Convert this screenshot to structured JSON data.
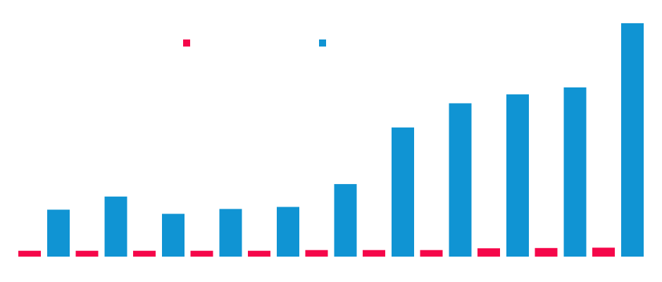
{
  "chart_data": {
    "type": "bar",
    "categories": [
      "",
      "",
      "",
      "",
      "",
      "",
      "",
      "",
      "",
      "",
      ""
    ],
    "series": [
      {
        "color": "#f5074a",
        "values": [
          0.85,
          0.85,
          0.85,
          0.85,
          0.85,
          0.95,
          0.95,
          0.95,
          1.2,
          1.25,
          1.3
        ]
      },
      {
        "color": "#1094d3",
        "values": [
          6.8,
          8.7,
          6.2,
          6.9,
          7.2,
          10.5,
          18.7,
          22.2,
          23.5,
          24.5,
          33.8
        ]
      }
    ],
    "ylim": [
      0,
      34.5
    ],
    "grid": false,
    "legend": "top-center"
  }
}
